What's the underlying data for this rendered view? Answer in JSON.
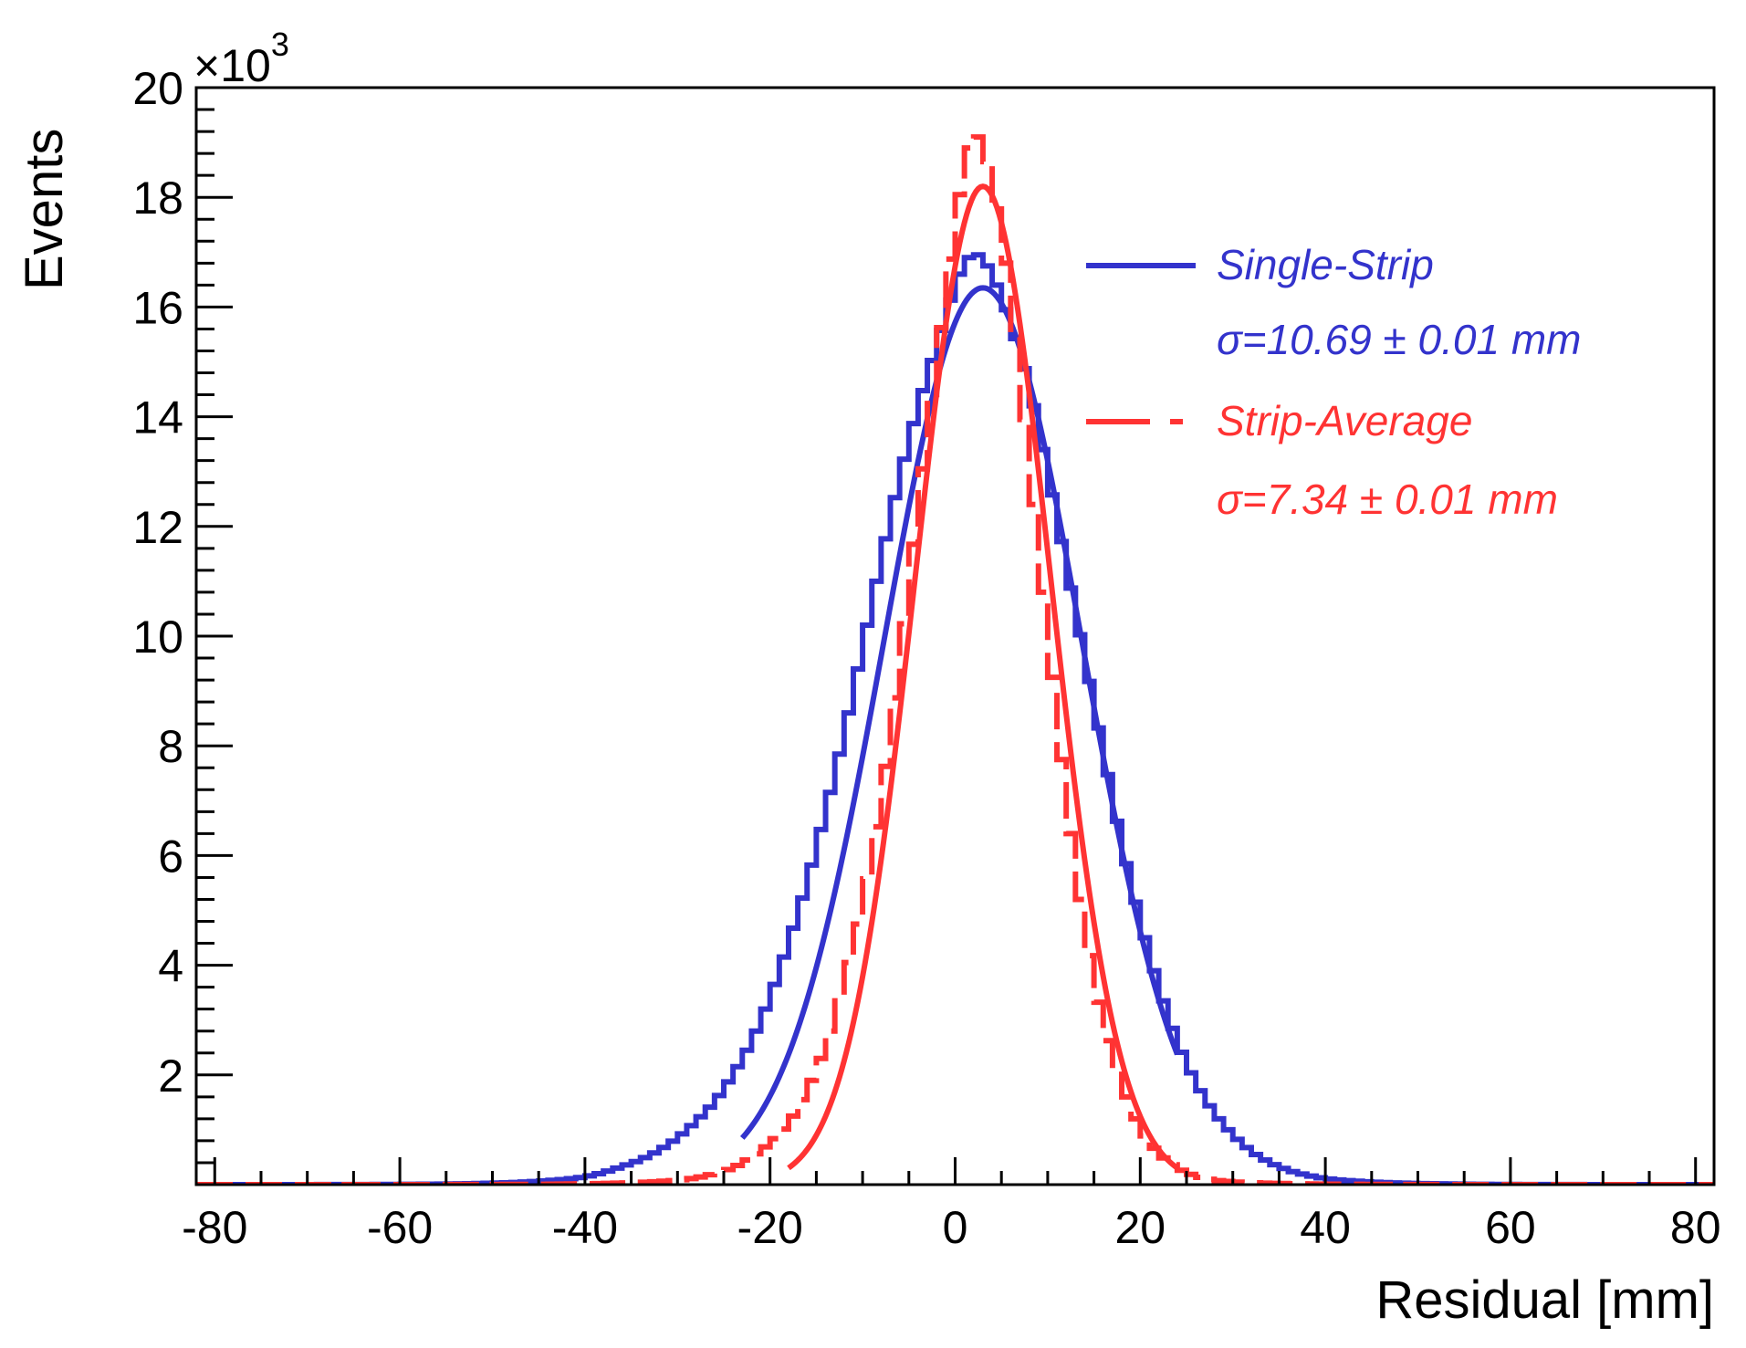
{
  "chart_data": {
    "type": "histogram",
    "xlabel": "Residual [mm]",
    "ylabel": "Events",
    "y_multiplier_label": {
      "base": "×10",
      "exponent": "3"
    },
    "xlim": [
      -82,
      82
    ],
    "ylim": [
      0,
      20
    ],
    "x_ticks": [
      -80,
      -60,
      -40,
      -20,
      0,
      20,
      40,
      60,
      80
    ],
    "x_tick_labels": [
      "-80",
      "-60",
      "-40",
      "-20",
      "0",
      "20",
      "40",
      "60",
      "80"
    ],
    "y_ticks": [
      2,
      4,
      6,
      8,
      10,
      12,
      14,
      16,
      18,
      20
    ],
    "y_tick_labels": [
      "2",
      "4",
      "6",
      "8",
      "10",
      "12",
      "14",
      "16",
      "18",
      "20"
    ],
    "legend_position": "top-right",
    "bin_width": 1,
    "series": [
      {
        "name": "Single-Strip",
        "annotation": "σ=10.69 ± 0.01 mm",
        "color": "#3333cc",
        "line_style": "solid",
        "hist_x": [
          -40,
          -38,
          -36,
          -34,
          -32,
          -30,
          -28,
          -26,
          -24,
          -22,
          -20,
          -18,
          -16,
          -14,
          -12,
          -10,
          -8,
          -6,
          -4,
          -2,
          0,
          1,
          2,
          3,
          4,
          5,
          6,
          8,
          10,
          12,
          14,
          16,
          18,
          20,
          22,
          24,
          26,
          28,
          30,
          32,
          34,
          36,
          38,
          40
        ],
        "hist_y": [
          0.14,
          0.22,
          0.33,
          0.45,
          0.62,
          0.85,
          1.15,
          1.5,
          2.0,
          2.6,
          3.4,
          4.4,
          5.5,
          6.8,
          8.2,
          9.8,
          11.4,
          12.9,
          14.2,
          15.3,
          16.4,
          16.8,
          17.0,
          16.9,
          16.6,
          16.2,
          15.7,
          14.6,
          13.0,
          11.3,
          9.6,
          7.9,
          6.2,
          4.8,
          3.6,
          2.6,
          1.85,
          1.3,
          0.9,
          0.6,
          0.4,
          0.26,
          0.17,
          0.11
        ],
        "fit": {
          "mean": 3.0,
          "sigma": 10.69,
          "amplitude": 16.35,
          "range": [
            -23,
            24
          ]
        }
      },
      {
        "name": "Strip-Average",
        "annotation": "σ=7.34 ± 0.01 mm",
        "color": "#ff3333",
        "line_style": "dashed",
        "hist_x": [
          -30,
          -28,
          -26,
          -24,
          -22,
          -20,
          -18,
          -16,
          -14,
          -12,
          -10,
          -8,
          -6,
          -4,
          -2,
          0,
          1,
          2,
          3,
          4,
          5,
          6,
          8,
          10,
          12,
          14,
          16,
          18,
          20,
          22,
          24,
          26,
          28,
          30
        ],
        "hist_y": [
          0.08,
          0.12,
          0.2,
          0.3,
          0.5,
          0.75,
          1.1,
          1.7,
          2.5,
          3.7,
          5.1,
          7.0,
          9.5,
          12.4,
          15.0,
          17.5,
          18.6,
          19.2,
          19.0,
          18.3,
          17.4,
          16.2,
          13.2,
          10.0,
          7.0,
          4.6,
          2.9,
          1.8,
          1.0,
          0.55,
          0.3,
          0.15,
          0.08,
          0.05
        ],
        "fit": {
          "mean": 3.0,
          "sigma": 7.34,
          "amplitude": 18.2,
          "range": [
            -18,
            24
          ]
        }
      }
    ]
  }
}
